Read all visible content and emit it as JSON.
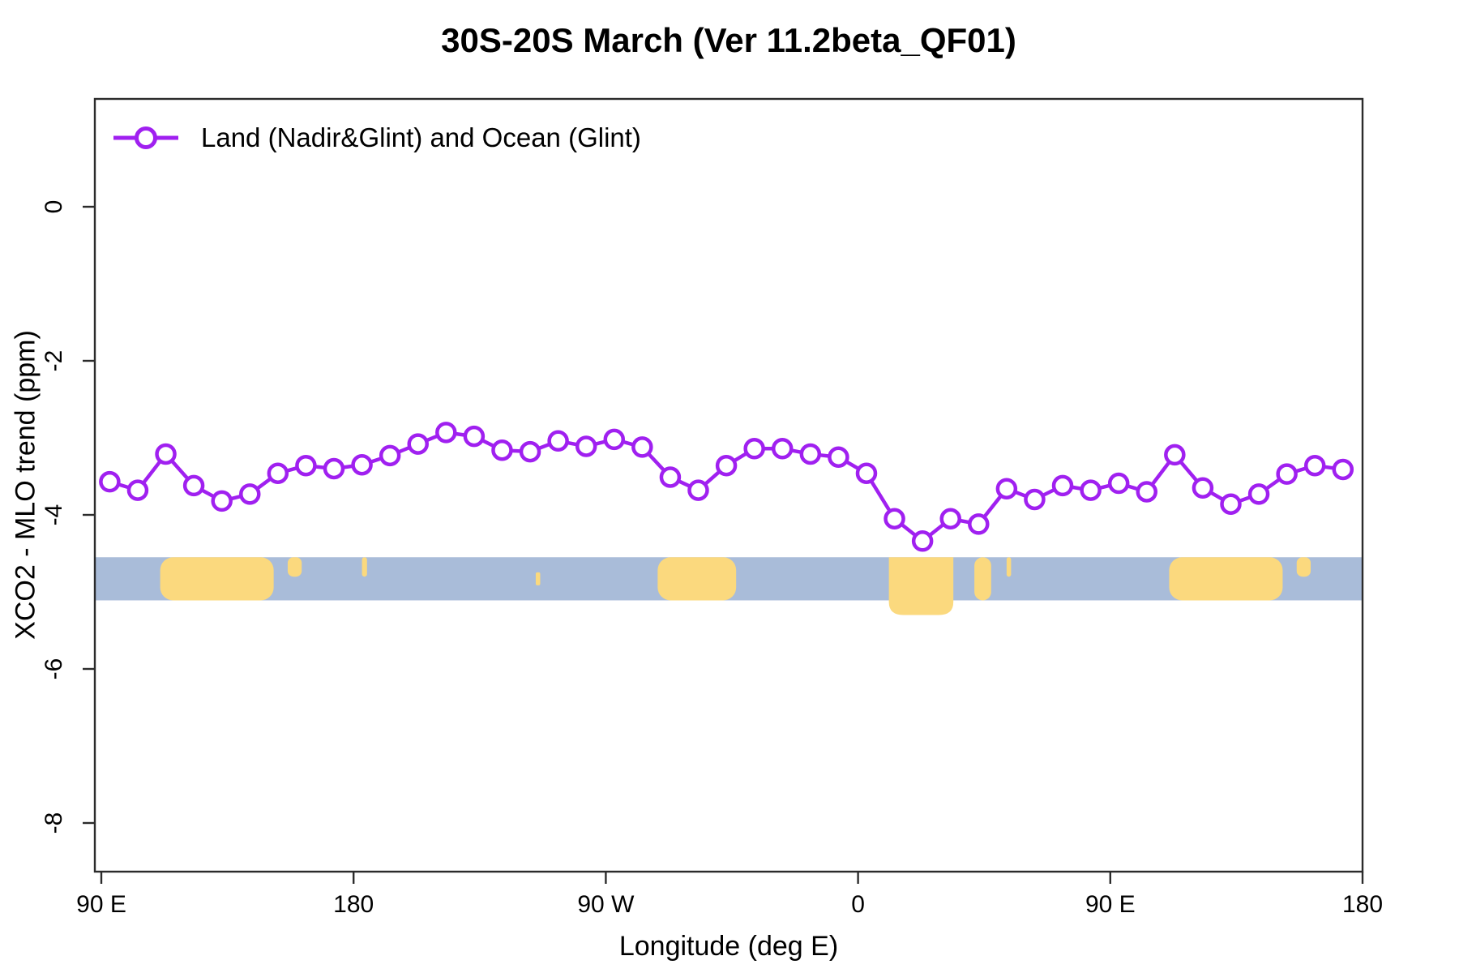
{
  "title": "30S-20S March (Ver 11.2beta_QF01)",
  "legend": {
    "label": "Land (Nadir&Glint) and Ocean (Glint)"
  },
  "colors": {
    "series_purple": "#A020F0",
    "ocean_blue": "#A9BCD9",
    "land_yellow": "#FBD97E",
    "axis": "#2b2b2b",
    "text": "#000000"
  },
  "chart_data": {
    "type": "line",
    "title": "30S-20S March (Ver 11.2beta_QF01)",
    "xlabel": "Longitude (deg E)",
    "ylabel": "XCO2 - MLO trend (ppm)",
    "xlim": [
      87.7,
      540
    ],
    "ylim": [
      -8.6,
      1.4
    ],
    "grid": false,
    "legend_position": "top-left",
    "x_ticks": [
      {
        "lon": 90,
        "label": "90 E"
      },
      {
        "lon": 180,
        "label": "180"
      },
      {
        "lon": 270,
        "label": "90 W"
      },
      {
        "lon": 360,
        "label": "0"
      },
      {
        "lon": 450,
        "label": "90 E"
      },
      {
        "lon": 540,
        "label": "180"
      }
    ],
    "y_ticks": [
      {
        "value": 0,
        "label": "0"
      },
      {
        "value": -2,
        "label": "-2"
      },
      {
        "value": -4,
        "label": "-4"
      },
      {
        "value": -6,
        "label": "-6"
      },
      {
        "value": -8,
        "label": "-8"
      }
    ],
    "series": [
      {
        "name": "Land (Nadir&Glint) and Ocean (Glint)",
        "marker": "open-circle",
        "x": [
          93,
          103,
          113,
          123,
          133,
          143,
          153,
          163,
          173,
          183,
          193,
          203,
          213,
          223,
          233,
          243,
          253,
          263,
          273,
          283,
          293,
          303,
          313,
          323,
          333,
          343,
          353,
          363,
          373,
          383,
          393,
          403,
          413,
          423,
          433,
          443,
          453,
          463,
          473,
          483,
          493,
          503,
          513,
          523,
          533
        ],
        "y": [
          -3.57,
          -3.68,
          -3.21,
          -3.62,
          -3.82,
          -3.73,
          -3.46,
          -3.36,
          -3.4,
          -3.35,
          -3.23,
          -3.08,
          -2.93,
          -2.98,
          -3.16,
          -3.18,
          -3.04,
          -3.11,
          -3.02,
          -3.12,
          -3.51,
          -3.68,
          -3.36,
          -3.14,
          -3.14,
          -3.21,
          -3.25,
          -3.46,
          -4.05,
          -4.34,
          -4.05,
          -4.12,
          -3.66,
          -3.8,
          -3.62,
          -3.68,
          -3.59,
          -3.7,
          -3.22,
          -3.65,
          -3.86,
          -3.73,
          -3.47,
          -3.36,
          -3.41
        ]
      }
    ],
    "map_band": {
      "description": "land/ocean strip for latitude band 30S-20S",
      "top_value": -4.55,
      "bottom_value": -5.11,
      "lands": [
        {
          "name": "australia",
          "lon0": 111.0,
          "lon1": 151.5,
          "shape": "blob"
        },
        {
          "name": "new-zealand-islands",
          "lon0": 156.5,
          "lon1": 161.5,
          "shape": "top"
        },
        {
          "name": "pacific-island",
          "lon0": 183.0,
          "lon1": 184.8,
          "shape": "top"
        },
        {
          "name": "pacific-island-2",
          "lon0": 245.0,
          "lon1": 246.6,
          "shape": "dot"
        },
        {
          "name": "south-america",
          "lon0": 288.5,
          "lon1": 316.5,
          "shape": "blob"
        },
        {
          "name": "africa",
          "lon0": 371.0,
          "lon1": 394.0,
          "shape": "below",
          "below_value": -5.3
        },
        {
          "name": "madagascar",
          "lon0": 401.5,
          "lon1": 407.5,
          "shape": "blob"
        },
        {
          "name": "indian-ocean-island",
          "lon0": 413.0,
          "lon1": 414.6,
          "shape": "top"
        },
        {
          "name": "australia-wrap",
          "lon0": 471.0,
          "lon1": 511.5,
          "shape": "blob"
        },
        {
          "name": "new-zealand-islands-wrap",
          "lon0": 516.5,
          "lon1": 521.5,
          "shape": "top"
        }
      ]
    }
  }
}
